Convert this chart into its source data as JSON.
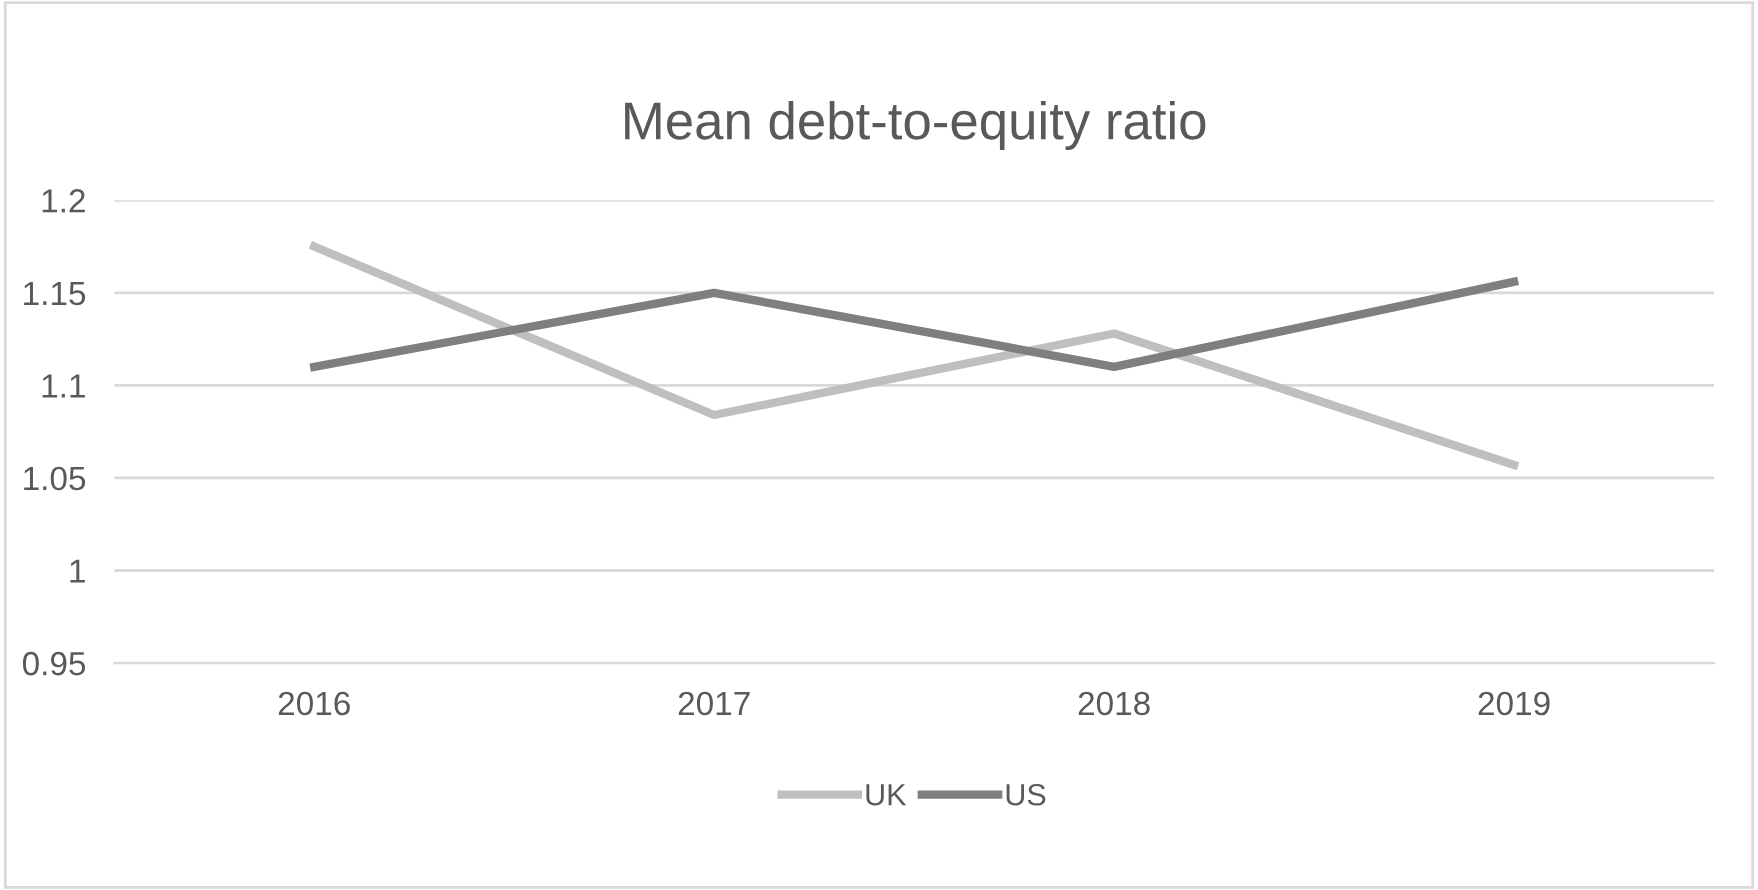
{
  "chart_data": {
    "type": "line",
    "title": "Mean debt-to-equity ratio",
    "categories": [
      "2016",
      "2017",
      "2018",
      "2019"
    ],
    "series": [
      {
        "name": "UK",
        "color": "#bfbfbf",
        "values": [
          1.175,
          1.084,
          1.128,
          1.057
        ]
      },
      {
        "name": "US",
        "color": "#7f7f7f",
        "values": [
          1.11,
          1.15,
          1.11,
          1.156
        ]
      }
    ],
    "ylim": [
      0.95,
      1.2
    ],
    "yticks": [
      0.95,
      1,
      1.05,
      1.1,
      1.15,
      1.2
    ],
    "grid": "y",
    "legend": "bottom",
    "marker": "none",
    "line_style": "solid"
  }
}
